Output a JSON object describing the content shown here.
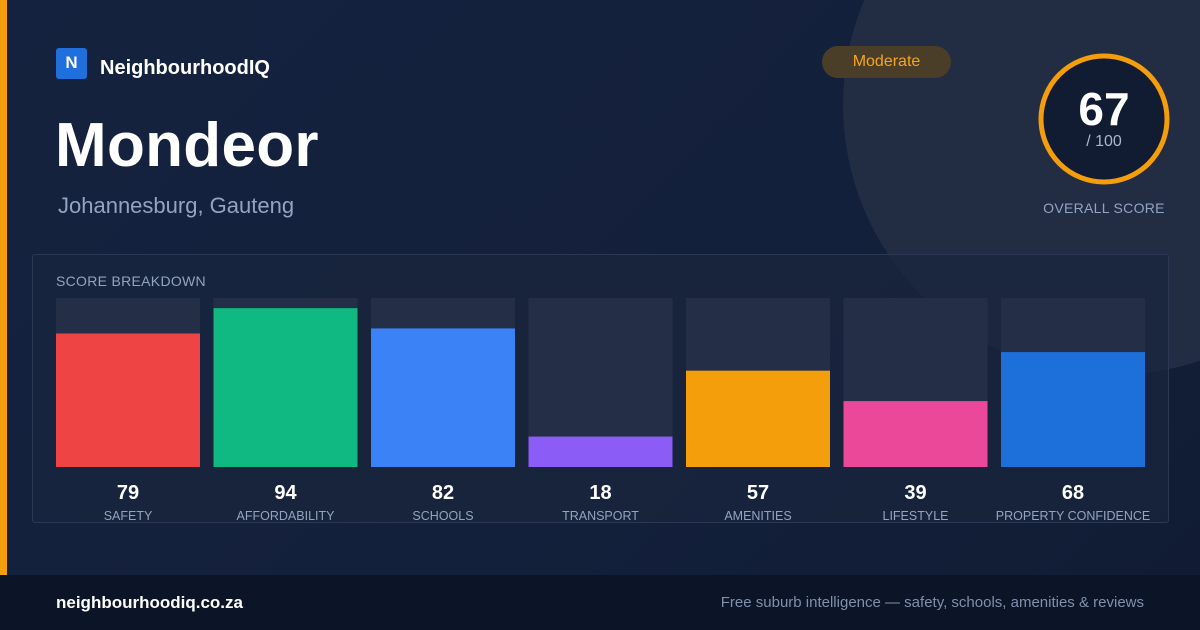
{
  "brand": {
    "logo_letter": "N",
    "name": "NeighbourhoodIQ"
  },
  "suburb": {
    "name": "Mondeor",
    "location": "Johannesburg, Gauteng"
  },
  "badge": {
    "label": "Moderate",
    "color": "#f5a524"
  },
  "overall": {
    "score": "67",
    "max_label": "/ 100",
    "label": "OVERALL SCORE",
    "fraction": 0.67,
    "ring_color": "#f59e0b"
  },
  "breakdown": {
    "title": "SCORE BREAKDOWN"
  },
  "chart_data": {
    "type": "bar",
    "title": "SCORE BREAKDOWN",
    "categories": [
      "SAFETY",
      "AFFORDABILITY",
      "SCHOOLS",
      "TRANSPORT",
      "AMENITIES",
      "LIFESTYLE",
      "PROPERTY CONFIDENCE"
    ],
    "values": [
      79,
      94,
      82,
      18,
      57,
      39,
      68
    ],
    "colors": [
      "#ef4444",
      "#10b981",
      "#3b82f6",
      "#8b5cf6",
      "#f59e0b",
      "#ec4899",
      "#1d6fd9"
    ],
    "ylim": [
      0,
      100
    ],
    "grid": false,
    "legend": "none"
  },
  "footer": {
    "url": "neighbourhoodiq.co.za",
    "tagline": "Free suburb intelligence — safety, schools, amenities & reviews"
  }
}
